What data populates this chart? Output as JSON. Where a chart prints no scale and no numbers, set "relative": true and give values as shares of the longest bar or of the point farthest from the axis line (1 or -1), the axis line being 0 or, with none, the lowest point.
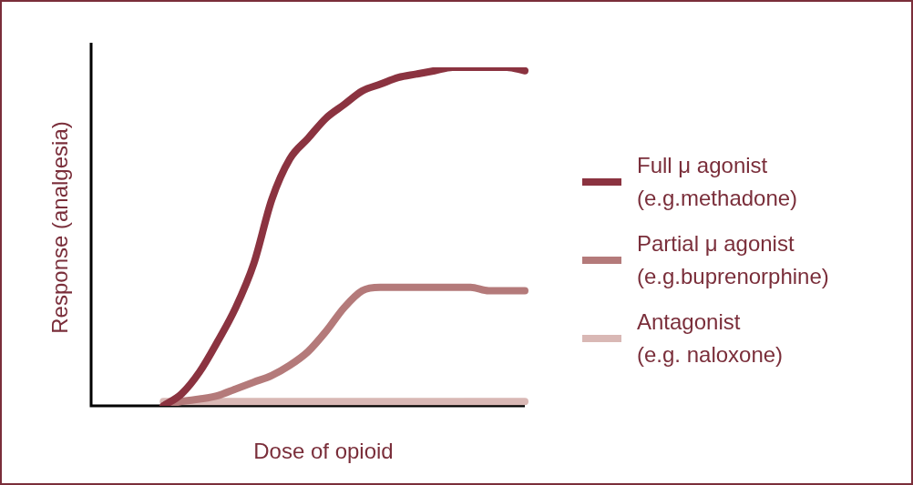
{
  "chart_data": {
    "type": "line",
    "relative": true,
    "xlabel": "Dose of opioid",
    "ylabel": "Response (analgesia)",
    "legend": "right",
    "grid": false,
    "marker": "none",
    "line_style": "solid",
    "categories": [
      null,
      null,
      null,
      null,
      null,
      null,
      null,
      null,
      null,
      null,
      null,
      null,
      null,
      null,
      null,
      null,
      null,
      null,
      null,
      null,
      null,
      null,
      null,
      null,
      null
    ],
    "series": [
      {
        "name": "Full μ agonist\n(e.g.methadone)",
        "color": "#8b3340",
        "values": [
          null,
          null,
          null,
          null,
          0,
          0.035,
          0.1,
          0.19,
          0.29,
          0.42,
          0.61,
          0.73,
          0.79,
          0.85,
          0.89,
          0.93,
          0.95,
          0.97,
          0.98,
          0.99,
          1,
          1,
          1,
          1,
          0.99
        ]
      },
      {
        "name": "Partial μ agonist\n(e.g.buprenorphine)",
        "color": "#b47a7a",
        "values": [
          null,
          null,
          null,
          null,
          0,
          0.013,
          0.02,
          0.03,
          0.05,
          0.07,
          0.09,
          0.12,
          0.16,
          0.22,
          0.29,
          0.34,
          0.35,
          0.35,
          0.35,
          0.35,
          0.35,
          0.35,
          0.34,
          0.34,
          0.34
        ]
      },
      {
        "name": "Antagonist\n(e.g. naloxone)",
        "color": "#d9b8b5",
        "values": [
          null,
          null,
          null,
          null,
          0.013,
          0.013,
          0.013,
          0.013,
          0.013,
          0.013,
          0.013,
          0.013,
          0.013,
          0.013,
          0.013,
          0.013,
          0.013,
          0.013,
          0.013,
          0.013,
          0.013,
          0.013,
          0.013,
          0.013,
          0.013
        ]
      }
    ]
  }
}
